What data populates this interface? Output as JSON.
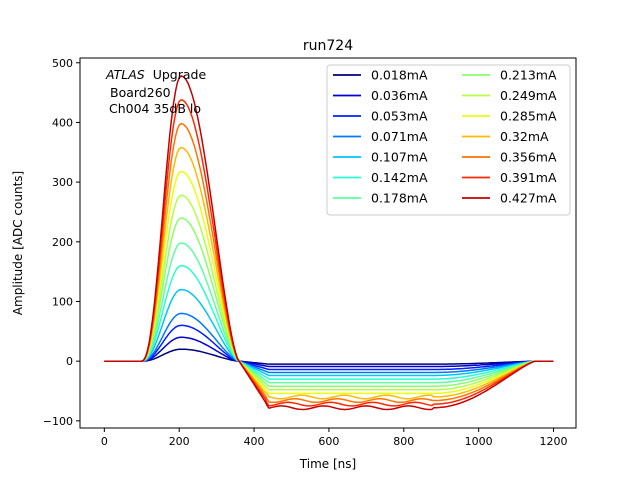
{
  "chart_data": {
    "type": "line",
    "title": "run724",
    "xlabel": "Time [ns]",
    "ylabel": "Amplitude [ADC counts]",
    "xlim": [
      -65,
      1260
    ],
    "ylim": [
      -112,
      508
    ],
    "xticks": [
      0,
      200,
      400,
      600,
      800,
      1000,
      1200
    ],
    "yticks": [
      -100,
      0,
      100,
      200,
      300,
      400,
      500
    ],
    "grid": false,
    "legend_location": "top-right",
    "legend_columns": 2,
    "annotation": {
      "atlas": "ATLAS",
      "upgrade": "Upgrade",
      "board": "Board260",
      "channel": "Ch004 35dB lo"
    },
    "x": [
      0,
      25,
      50,
      75,
      100,
      125,
      150,
      175,
      200,
      225,
      250,
      275,
      300,
      325,
      350,
      375,
      400,
      425,
      450,
      475,
      500,
      550,
      600,
      650,
      700,
      750,
      800,
      825,
      850,
      875,
      900,
      925,
      950,
      1000,
      1050,
      1100,
      1150,
      1200
    ],
    "series": [
      {
        "name": "0.018mA",
        "color": "#00007f",
        "peak": 20,
        "undershoot": -5
      },
      {
        "name": "0.036mA",
        "color": "#0000d9",
        "peak": 40,
        "undershoot": -9
      },
      {
        "name": "0.053mA",
        "color": "#0020ff",
        "peak": 60,
        "undershoot": -14
      },
      {
        "name": "0.071mA",
        "color": "#0078ff",
        "peak": 80,
        "undershoot": -19
      },
      {
        "name": "0.107mA",
        "color": "#00c4ff",
        "peak": 120,
        "undershoot": -24
      },
      {
        "name": "0.142mA",
        "color": "#27ffcf",
        "peak": 160,
        "undershoot": -30
      },
      {
        "name": "0.178mA",
        "color": "#5dffa0",
        "peak": 198,
        "undershoot": -36
      },
      {
        "name": "0.213mA",
        "color": "#8aff6d",
        "peak": 240,
        "undershoot": -42
      },
      {
        "name": "0.249mA",
        "color": "#b4ff43",
        "peak": 278,
        "undershoot": -48
      },
      {
        "name": "0.285mA",
        "color": "#e8ff0f",
        "peak": 318,
        "undershoot": -54
      },
      {
        "name": "0.32mA",
        "color": "#ffb900",
        "peak": 358,
        "undershoot": -60
      },
      {
        "name": "0.356mA",
        "color": "#ff7300",
        "peak": 398,
        "undershoot": -66
      },
      {
        "name": "0.391mA",
        "color": "#ff2800",
        "peak": 438,
        "undershoot": -72
      },
      {
        "name": "0.427mA",
        "color": "#c60000",
        "peak": 478,
        "undershoot": -78
      }
    ]
  }
}
